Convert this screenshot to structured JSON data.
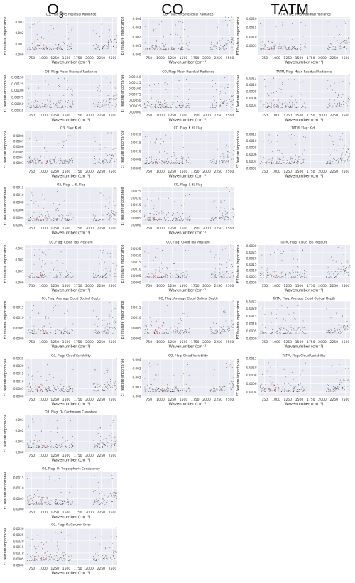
{
  "headers": [
    {
      "pre": "O",
      "sub": "3"
    },
    {
      "pre": "CO",
      "sub": ""
    },
    {
      "pre": "TATM",
      "sub": ""
    }
  ],
  "common": {
    "ylabel": "ET feature importance",
    "xlabel": "Wavenumber (cm⁻¹)",
    "xticks": [
      750,
      1000,
      1250,
      1500,
      1750,
      2000,
      2250,
      2500
    ],
    "xlim": [
      600,
      2600
    ],
    "point_color": "#222222",
    "highlight_color": "#e8504a",
    "background": "#eaeaf2",
    "grid": true
  },
  "chart_data": [
    {
      "type": "scatter",
      "col": 0,
      "row": 0,
      "title": "O3, Flag: RMS Residual Radiance",
      "ylim": [
        0,
        0.0035
      ],
      "yticks": [
        "0.000",
        "0.001",
        "0.002",
        "0.003"
      ],
      "yvals": [
        0,
        0.001,
        0.002,
        0.003
      ]
    },
    {
      "type": "scatter",
      "col": 0,
      "row": 1,
      "title": "O3, Flag: Mean Residual Radiance",
      "ylim": [
        0.0002,
        0.0016
      ],
      "yticks": [
        "0.00025",
        "0.00050",
        "0.00075",
        "0.00100",
        "0.00125",
        "0.00150"
      ],
      "yvals": [
        0.00025,
        0.0005,
        0.00075,
        0.001,
        0.00125,
        0.0015
      ]
    },
    {
      "type": "scatter",
      "col": 0,
      "row": 2,
      "title": "O3, Flag: K dL",
      "ylim": [
        0.0002,
        0.0009
      ],
      "yticks": [
        "0.0003",
        "0.0004",
        "0.0005",
        "0.0006",
        "0.0007",
        "0.0008"
      ],
      "yvals": [
        0.0003,
        0.0004,
        0.0005,
        0.0006,
        0.0007,
        0.0008
      ]
    },
    {
      "type": "scatter",
      "col": 0,
      "row": 3,
      "title": "O3, Flag: L dL Flag",
      "ylim": [
        0.0002,
        0.0012
      ],
      "yticks": [
        "0.0002",
        "0.0004",
        "0.0006",
        "0.0008",
        "0.0010",
        "0.0012"
      ],
      "yvals": [
        0.0002,
        0.0004,
        0.0006,
        0.0008,
        0.001,
        0.0012
      ]
    },
    {
      "type": "scatter",
      "col": 0,
      "row": 4,
      "title": "O3, Flag: Cloud Top Pressure",
      "ylim": [
        0,
        0.0033
      ],
      "yticks": [
        "0.000",
        "0.001",
        "0.002",
        "0.003"
      ],
      "yvals": [
        0,
        0.001,
        0.002,
        0.003
      ]
    },
    {
      "type": "scatter",
      "col": 0,
      "row": 5,
      "title": "O3, Flag: Average Cloud Optical Depth",
      "ylim": [
        0,
        0.0018
      ],
      "yticks": [
        "0.0000",
        "0.0005",
        "0.0010",
        "0.0015"
      ],
      "yvals": [
        0,
        0.0005,
        0.001,
        0.0015
      ]
    },
    {
      "type": "scatter",
      "col": 0,
      "row": 6,
      "title": "O3, Flag: Cloud Variability",
      "ylim": [
        0,
        0.0025
      ],
      "yticks": [
        "0.0000",
        "0.0005",
        "0.0010",
        "0.0015",
        "0.0020",
        "0.0025"
      ],
      "yvals": [
        0,
        0.0005,
        0.001,
        0.0015,
        0.002,
        0.0025
      ]
    },
    {
      "type": "scatter",
      "col": 0,
      "row": 7,
      "title": "O3, Flag: O₃ Continuum Curvature",
      "ylim": [
        0,
        0.0035
      ],
      "yticks": [
        "0.000",
        "0.001",
        "0.002",
        "0.003"
      ],
      "yvals": [
        0,
        0.001,
        0.002,
        0.003
      ]
    },
    {
      "type": "scatter",
      "col": 0,
      "row": 8,
      "title": "O3, Flag: O₃ Tropospheric Consistency",
      "ylim": [
        0,
        0.0018
      ],
      "yticks": [
        "0.0000",
        "0.0005",
        "0.0010",
        "0.0015"
      ],
      "yvals": [
        0,
        0.0005,
        0.001,
        0.0015
      ]
    },
    {
      "type": "scatter",
      "col": 0,
      "row": 9,
      "title": "O3, Flag: O₃ Column Error",
      "ylim": [
        0,
        0.0031
      ],
      "yticks": [
        "0.0000",
        "0.0005",
        "0.0010",
        "0.0015",
        "0.0020",
        "0.0025",
        "0.0030"
      ],
      "yvals": [
        0,
        0.0005,
        0.001,
        0.0015,
        0.002,
        0.0025,
        0.003
      ]
    },
    {
      "type": "scatter",
      "col": 1,
      "row": 0,
      "title": "CO, Flag: RMS Residual Radiance",
      "ylim": [
        0,
        0.0042
      ],
      "yticks": [
        "0.000",
        "0.001",
        "0.002",
        "0.003",
        "0.004"
      ],
      "yvals": [
        0,
        0.001,
        0.002,
        0.003,
        0.004
      ]
    },
    {
      "type": "scatter",
      "col": 1,
      "row": 1,
      "title": "CO, Flag: Mean Residual Radiance",
      "ylim": [
        0,
        0.0016
      ],
      "yticks": [
        "0.00000",
        "0.00025",
        "0.00050",
        "0.00075",
        "0.00100",
        "0.00125",
        "0.00150"
      ],
      "yvals": [
        0,
        0.00025,
        0.0005,
        0.00075,
        0.001,
        0.00125,
        0.0015
      ]
    },
    {
      "type": "scatter",
      "col": 1,
      "row": 2,
      "title": "CO, Flag: K dL Flag",
      "ylim": [
        0,
        0.0022
      ],
      "yticks": [
        "0.0000",
        "0.0005",
        "0.0010",
        "0.0015",
        "0.0020"
      ],
      "yvals": [
        0,
        0.0005,
        0.001,
        0.0015,
        0.002
      ]
    },
    {
      "type": "scatter",
      "col": 1,
      "row": 3,
      "title": "CO, Flag: L dL Flag",
      "ylim": [
        0,
        0.0028
      ],
      "yticks": [
        "0.0000",
        "0.0005",
        "0.0010",
        "0.0015",
        "0.0020",
        "0.0025"
      ],
      "yvals": [
        0,
        0.0005,
        0.001,
        0.0015,
        0.002,
        0.0025
      ]
    },
    {
      "type": "scatter",
      "col": 1,
      "row": 4,
      "title": "CO, Flag: Cloud Top Pressure",
      "ylim": [
        0,
        0.0028
      ],
      "yticks": [
        "0.0000",
        "0.0005",
        "0.0010",
        "0.0015",
        "0.0020",
        "0.0025"
      ],
      "yvals": [
        0,
        0.0005,
        0.001,
        0.0015,
        0.002,
        0.0025
      ]
    },
    {
      "type": "scatter",
      "col": 1,
      "row": 5,
      "title": "CO, Flag: Average Cloud Optical Depth",
      "ylim": [
        0,
        0.0018
      ],
      "yticks": [
        "0.0000",
        "0.0005",
        "0.0010",
        "0.0015"
      ],
      "yvals": [
        0,
        0.0005,
        0.001,
        0.0015
      ]
    },
    {
      "type": "scatter",
      "col": 1,
      "row": 6,
      "title": "CO, Flag: Cloud Variability",
      "ylim": [
        0,
        0.0041
      ],
      "yticks": [
        "0.000",
        "0.001",
        "0.002",
        "0.003",
        "0.004"
      ],
      "yvals": [
        0,
        0.001,
        0.002,
        0.003,
        0.004
      ]
    },
    {
      "type": "scatter",
      "col": 2,
      "row": 0,
      "title": "TATM, Flag: RMS Residual Radiance",
      "ylim": [
        0,
        0.0021
      ],
      "yticks": [
        "0.0005",
        "0.0010",
        "0.0015",
        "0.0020"
      ],
      "yvals": [
        0.0005,
        0.001,
        0.0015,
        0.002
      ]
    },
    {
      "type": "scatter",
      "col": 2,
      "row": 1,
      "title": "TATM, Flag: Mean Residual Radiance",
      "ylim": [
        0.0002,
        0.0013
      ],
      "yticks": [
        "0.0004",
        "0.0006",
        "0.0008",
        "0.0010",
        "0.0012"
      ],
      "yvals": [
        0.0004,
        0.0006,
        0.0008,
        0.001,
        0.0012
      ]
    },
    {
      "type": "scatter",
      "col": 2,
      "row": 2,
      "title": "TATM, Flag: K dL",
      "ylim": [
        0.0002,
        0.0013
      ],
      "yticks": [
        "0.0002",
        "0.0004",
        "0.0006",
        "0.0008",
        "0.0010",
        "0.0012"
      ],
      "yvals": [
        0.0002,
        0.0004,
        0.0006,
        0.0008,
        0.001,
        0.0012
      ]
    },
    {
      "type": "scatter",
      "col": 2,
      "row": 4,
      "title": "TATM, Flag: Cloud Top Pressure",
      "ylim": [
        0,
        0.0031
      ],
      "yticks": [
        "0.0000",
        "0.0005",
        "0.0010",
        "0.0015",
        "0.0020",
        "0.0025",
        "0.0030"
      ],
      "yvals": [
        0,
        0.0005,
        0.001,
        0.0015,
        0.002,
        0.0025,
        0.003
      ]
    },
    {
      "type": "scatter",
      "col": 2,
      "row": 5,
      "title": "TATM, Flag: Average Cloud Optical Depth",
      "ylim": [
        0,
        0.0025
      ],
      "yticks": [
        "0.0000",
        "0.0005",
        "0.0010",
        "0.0015",
        "0.0020",
        "0.0025"
      ],
      "yvals": [
        0,
        0.0005,
        0.001,
        0.0015,
        0.002,
        0.0025
      ]
    },
    {
      "type": "scatter",
      "col": 2,
      "row": 6,
      "title": "TATM, Flag: Cloud Variability",
      "ylim": [
        0.0003,
        0.0012
      ],
      "yticks": [
        "0.0004",
        "0.0006",
        "0.0008",
        "0.0010",
        "0.0012"
      ],
      "yvals": [
        0.0004,
        0.0006,
        0.0008,
        0.001,
        0.0012
      ]
    }
  ]
}
